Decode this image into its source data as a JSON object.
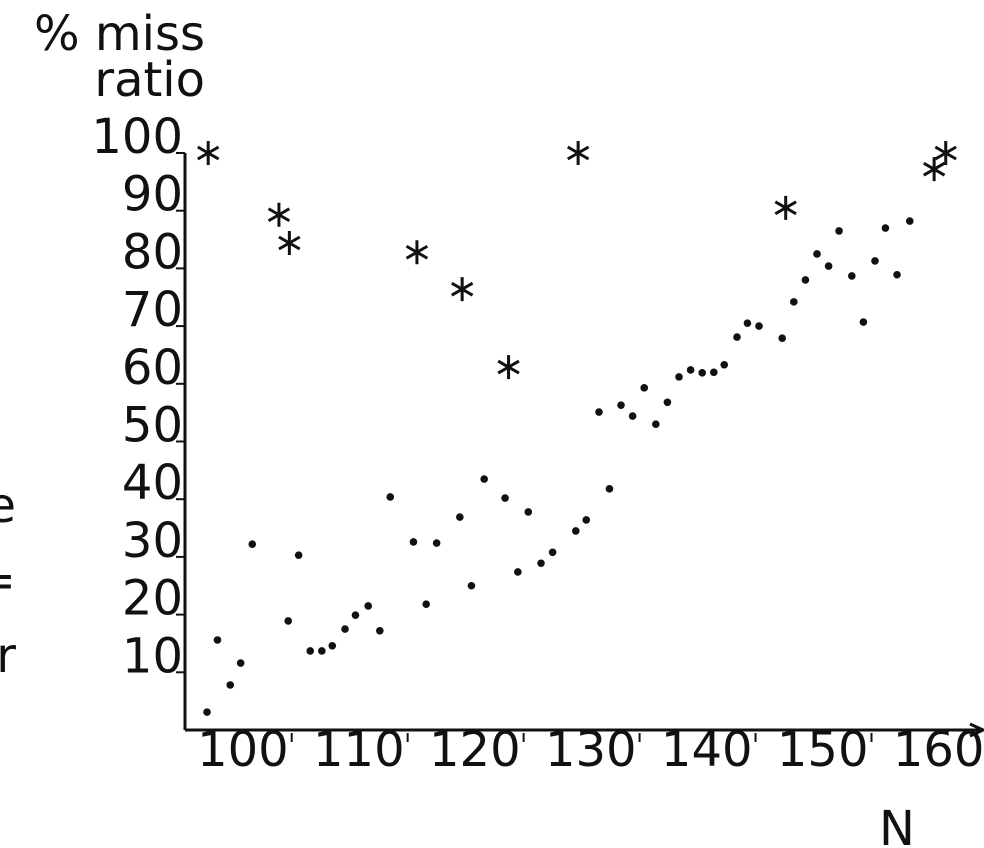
{
  "chart_data": {
    "type": "scatter",
    "ylabel": [
      "% miss",
      "ratio"
    ],
    "xlabel": "N",
    "side_labels": [
      "e",
      "=",
      "r"
    ],
    "xlim": [
      90.8,
      159.7
    ],
    "ylim": [
      0,
      100
    ],
    "xticks": [
      100,
      110,
      120,
      130,
      140,
      150,
      160
    ],
    "yticks": [
      10,
      20,
      30,
      40,
      50,
      60,
      70,
      80,
      90,
      100
    ],
    "series": [
      {
        "color": "#111111",
        "marker": "dot",
        "x": [
          92.7,
          93.6,
          94.7,
          95.6,
          96.6,
          99.7,
          100.6,
          101.6,
          102.6,
          103.5,
          104.6,
          105.5,
          106.6,
          107.6,
          108.5,
          110.5,
          111.6,
          112.5,
          114.5,
          115.5,
          116.6,
          118.4,
          119.5,
          120.4,
          121.5,
          122.5,
          124.5,
          125.4,
          126.5,
          127.4,
          128.4,
          129.4,
          130.4,
          131.4,
          132.4,
          133.4,
          134.4,
          135.4,
          136.4,
          137.3,
          138.4,
          139.3,
          140.3,
          142.3,
          143.3,
          144.3,
          145.3,
          146.3,
          147.2,
          148.3,
          149.3,
          150.3,
          151.2,
          152.2,
          153.3
        ],
        "values": [
          3.1,
          15.6,
          7.8,
          11.6,
          32.2,
          18.9,
          30.3,
          13.7,
          13.7,
          14.6,
          17.5,
          19.9,
          21.5,
          17.2,
          40.4,
          32.6,
          21.8,
          32.4,
          36.9,
          25.0,
          43.5,
          40.2,
          27.4,
          37.8,
          28.9,
          30.8,
          34.5,
          36.4,
          55.1,
          41.8,
          56.3,
          54.4,
          59.3,
          53.0,
          56.8,
          61.2,
          62.4,
          61.9,
          62.0,
          63.3,
          68.1,
          70.5,
          70.0,
          67.9,
          74.2,
          78.0,
          82.5,
          80.4,
          86.5,
          78.7,
          70.7,
          81.3,
          87.0,
          78.9,
          88.2
        ]
      },
      {
        "color": "#111111",
        "marker": "star",
        "x": [
          92.8,
          98.9,
          99.8,
          110.8,
          114.7,
          118.7,
          124.7,
          142.6,
          155.4,
          156.4
        ],
        "values": [
          100,
          89.3,
          84.4,
          82.8,
          76.4,
          62.9,
          100,
          90.5,
          97.2,
          100
        ]
      }
    ]
  }
}
